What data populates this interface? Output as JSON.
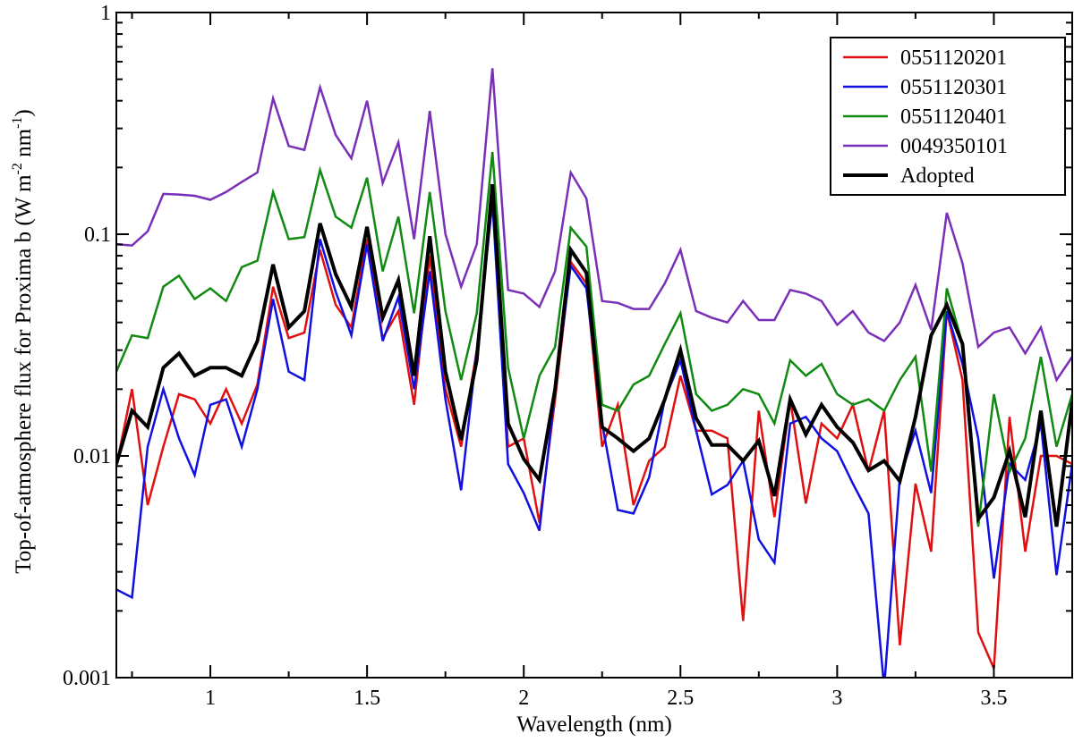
{
  "chart_data": {
    "type": "line",
    "xlabel": "Wavelength (nm)",
    "ylabel": "Top-of-atmosphere flux for Proxima b (W m^-2 nm^-1)",
    "ylabel_parts": [
      "Top-of-atmosphere flux for Proxima b (W m",
      "-2",
      " nm",
      "-1",
      ")"
    ],
    "xlim": [
      0.7,
      3.75
    ],
    "ylim": [
      0.001,
      1
    ],
    "y_scale": "log",
    "grid": false,
    "legend_position": "top-right",
    "x_ticks": [
      1,
      1.5,
      2,
      2.5,
      3,
      3.5
    ],
    "x_tick_labels": [
      "1",
      "1.5",
      "2",
      "2.5",
      "3",
      "3.5"
    ],
    "y_ticks": [
      0.001,
      0.01,
      0.1,
      1
    ],
    "y_tick_labels": [
      "0.001",
      "0.01",
      "0.1",
      "1"
    ],
    "x": [
      0.7,
      0.75,
      0.8,
      0.85,
      0.9,
      0.95,
      1.0,
      1.05,
      1.1,
      1.15,
      1.2,
      1.25,
      1.3,
      1.35,
      1.4,
      1.45,
      1.5,
      1.55,
      1.6,
      1.65,
      1.7,
      1.75,
      1.8,
      1.85,
      1.9,
      1.95,
      2.0,
      2.05,
      2.1,
      2.15,
      2.2,
      2.25,
      2.3,
      2.35,
      2.4,
      2.45,
      2.5,
      2.55,
      2.6,
      2.65,
      2.7,
      2.75,
      2.8,
      2.85,
      2.9,
      2.95,
      3.0,
      3.05,
      3.1,
      3.15,
      3.2,
      3.25,
      3.3,
      3.35,
      3.4,
      3.45,
      3.5,
      3.55,
      3.6,
      3.65,
      3.7,
      3.75
    ],
    "series": [
      {
        "name": "0551120201",
        "color": "#e01010",
        "width": 2.5,
        "values": [
          0.009,
          0.02,
          0.006,
          0.011,
          0.019,
          0.018,
          0.014,
          0.02,
          0.014,
          0.021,
          0.058,
          0.034,
          0.036,
          0.085,
          0.048,
          0.038,
          0.095,
          0.034,
          0.045,
          0.017,
          0.08,
          0.02,
          0.011,
          0.03,
          0.15,
          0.011,
          0.012,
          0.005,
          0.018,
          0.075,
          0.06,
          0.011,
          0.017,
          0.006,
          0.0095,
          0.011,
          0.023,
          0.013,
          0.013,
          0.012,
          0.0018,
          0.016,
          0.0053,
          0.018,
          0.0061,
          0.014,
          0.012,
          0.017,
          0.0085,
          0.016,
          0.0014,
          0.0075,
          0.0037,
          0.045,
          0.022,
          0.0016,
          0.0011,
          0.015,
          0.0037,
          0.01,
          0.01,
          0.0092
        ]
      },
      {
        "name": "0551120301",
        "color": "#1010e0",
        "width": 2.5,
        "values": [
          0.0025,
          0.0023,
          0.011,
          0.02,
          0.012,
          0.0082,
          0.017,
          0.018,
          0.011,
          0.02,
          0.051,
          0.024,
          0.022,
          0.095,
          0.055,
          0.035,
          0.09,
          0.033,
          0.052,
          0.02,
          0.068,
          0.018,
          0.007,
          0.03,
          0.14,
          0.0092,
          0.0068,
          0.0046,
          0.02,
          0.072,
          0.057,
          0.014,
          0.0057,
          0.0055,
          0.008,
          0.018,
          0.027,
          0.013,
          0.0067,
          0.0074,
          0.0095,
          0.0042,
          0.0033,
          0.014,
          0.015,
          0.012,
          0.0105,
          0.0075,
          0.0055,
          0.0009,
          0.008,
          0.013,
          0.0068,
          0.045,
          0.026,
          0.012,
          0.0028,
          0.0092,
          0.0078,
          0.014,
          0.0029,
          0.0092
        ]
      },
      {
        "name": "0551120401",
        "color": "#108a10",
        "width": 2.5,
        "values": [
          0.024,
          0.035,
          0.034,
          0.058,
          0.065,
          0.051,
          0.057,
          0.05,
          0.071,
          0.076,
          0.155,
          0.095,
          0.097,
          0.195,
          0.12,
          0.107,
          0.18,
          0.068,
          0.12,
          0.044,
          0.155,
          0.045,
          0.022,
          0.044,
          0.235,
          0.025,
          0.012,
          0.023,
          0.031,
          0.107,
          0.088,
          0.017,
          0.016,
          0.021,
          0.023,
          0.032,
          0.044,
          0.019,
          0.016,
          0.017,
          0.02,
          0.019,
          0.014,
          0.027,
          0.023,
          0.026,
          0.019,
          0.017,
          0.018,
          0.016,
          0.022,
          0.028,
          0.0085,
          0.057,
          0.032,
          0.0048,
          0.019,
          0.0085,
          0.012,
          0.028,
          0.011,
          0.019
        ]
      },
      {
        "name": "0049350101",
        "color": "#7a2fb8",
        "width": 2.5,
        "values": [
          0.09,
          0.089,
          0.103,
          0.152,
          0.151,
          0.149,
          0.143,
          0.155,
          0.172,
          0.19,
          0.41,
          0.25,
          0.24,
          0.46,
          0.28,
          0.22,
          0.4,
          0.17,
          0.26,
          0.095,
          0.36,
          0.1,
          0.058,
          0.09,
          0.56,
          0.056,
          0.054,
          0.047,
          0.068,
          0.19,
          0.145,
          0.05,
          0.049,
          0.046,
          0.046,
          0.06,
          0.085,
          0.045,
          0.042,
          0.04,
          0.05,
          0.041,
          0.041,
          0.056,
          0.054,
          0.05,
          0.039,
          0.045,
          0.036,
          0.033,
          0.04,
          0.059,
          0.037,
          0.125,
          0.074,
          0.031,
          0.036,
          0.038,
          0.029,
          0.038,
          0.022,
          0.028
        ]
      },
      {
        "name": "Adopted",
        "color": "#000000",
        "width": 4,
        "values": [
          0.0092,
          0.016,
          0.0135,
          0.025,
          0.029,
          0.023,
          0.025,
          0.025,
          0.023,
          0.033,
          0.073,
          0.038,
          0.045,
          0.112,
          0.066,
          0.047,
          0.108,
          0.042,
          0.062,
          0.023,
          0.098,
          0.024,
          0.0118,
          0.027,
          0.168,
          0.014,
          0.0097,
          0.0078,
          0.02,
          0.085,
          0.067,
          0.0135,
          0.012,
          0.0105,
          0.012,
          0.018,
          0.03,
          0.0148,
          0.0112,
          0.0112,
          0.0095,
          0.0117,
          0.0066,
          0.018,
          0.0125,
          0.017,
          0.0135,
          0.0115,
          0.0086,
          0.0095,
          0.0077,
          0.015,
          0.035,
          0.048,
          0.032,
          0.0052,
          0.0065,
          0.0105,
          0.0053,
          0.016,
          0.0048,
          0.0175
        ]
      }
    ]
  }
}
